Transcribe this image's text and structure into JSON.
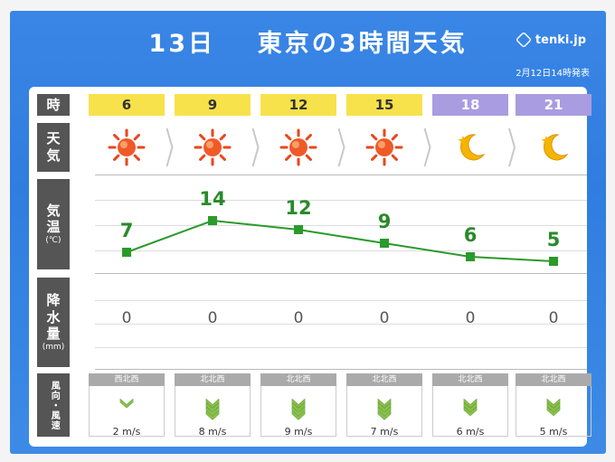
{
  "header": {
    "title_day": "13日",
    "title_main": "東京の3時間天気",
    "logo": "tenki.jp",
    "issued": "2月12日14時発表"
  },
  "labels": {
    "time": "時",
    "weather_1": "天",
    "weather_2": "気",
    "temp_1": "気",
    "temp_2": "温",
    "temp_unit": "(℃)",
    "rain_1": "降",
    "rain_2": "水",
    "rain_3": "量",
    "rain_unit": "(mm)",
    "wind": "風向・風速"
  },
  "slots": [
    {
      "hour": "6",
      "period": "day",
      "weather": "sun-icon",
      "temp": "7",
      "rain": "0",
      "wind_dir": "西北西",
      "wind_speed": "2 m/s"
    },
    {
      "hour": "9",
      "period": "day",
      "weather": "sun-icon",
      "temp": "14",
      "rain": "0",
      "wind_dir": "北北西",
      "wind_speed": "8 m/s"
    },
    {
      "hour": "12",
      "period": "day",
      "weather": "sun-icon",
      "temp": "12",
      "rain": "0",
      "wind_dir": "北北西",
      "wind_speed": "9 m/s"
    },
    {
      "hour": "15",
      "period": "day",
      "weather": "sun-icon",
      "temp": "9",
      "rain": "0",
      "wind_dir": "北北西",
      "wind_speed": "7 m/s"
    },
    {
      "hour": "18",
      "period": "night",
      "weather": "moon-icon",
      "temp": "6",
      "rain": "0",
      "wind_dir": "北北西",
      "wind_speed": "6 m/s"
    },
    {
      "hour": "21",
      "period": "night",
      "weather": "moon-icon",
      "temp": "5",
      "rain": "0",
      "wind_dir": "北北西",
      "wind_speed": "5 m/s"
    }
  ],
  "colors": {
    "day": "#f7e24c",
    "night": "#a99ce0",
    "temp_line": "#2a9a2a",
    "background": "#3a86e6"
  }
}
